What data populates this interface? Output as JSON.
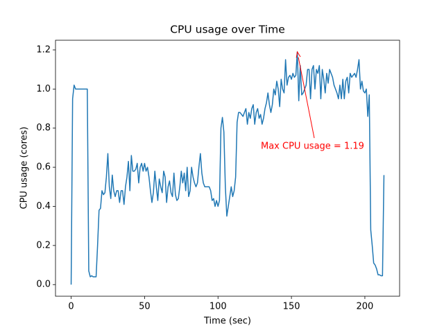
{
  "chart_data": {
    "type": "line",
    "title": "CPU usage over Time",
    "xlabel": "Time (sec)",
    "ylabel": "CPU usage (cores)",
    "annotation": {
      "text": "Max CPU usage = 1.19",
      "color": "#ff0000"
    },
    "x": [
      0,
      1,
      2,
      3,
      4,
      5,
      6,
      7,
      8,
      9,
      10,
      11,
      12,
      13,
      14,
      15,
      16,
      17,
      18,
      19,
      20,
      21,
      22,
      23,
      24,
      25,
      26,
      27,
      28,
      29,
      30,
      31,
      32,
      33,
      34,
      35,
      36,
      37,
      38,
      39,
      40,
      41,
      42,
      43,
      44,
      45,
      46,
      47,
      48,
      49,
      50,
      51,
      52,
      53,
      54,
      55,
      56,
      57,
      58,
      59,
      60,
      61,
      62,
      63,
      64,
      65,
      66,
      67,
      68,
      69,
      70,
      71,
      72,
      73,
      74,
      75,
      76,
      77,
      78,
      79,
      80,
      81,
      82,
      83,
      84,
      85,
      86,
      87,
      88,
      89,
      90,
      91,
      92,
      93,
      94,
      95,
      96,
      97,
      98,
      99,
      100,
      101,
      102,
      103,
      104,
      105,
      106,
      107,
      108,
      109,
      110,
      111,
      112,
      113,
      114,
      115,
      116,
      117,
      118,
      119,
      120,
      121,
      122,
      123,
      124,
      125,
      126,
      127,
      128,
      129,
      130,
      131,
      132,
      133,
      134,
      135,
      136,
      137,
      138,
      139,
      140,
      141,
      142,
      143,
      144,
      145,
      146,
      147,
      148,
      149,
      150,
      151,
      152,
      153,
      154,
      155,
      156,
      157,
      158,
      159,
      160,
      161,
      162,
      163,
      164,
      165,
      166,
      167,
      168,
      169,
      170,
      171,
      172,
      173,
      174,
      175,
      176,
      177,
      178,
      179,
      180,
      181,
      182,
      183,
      184,
      185,
      186,
      187,
      188,
      189,
      190,
      191,
      192,
      193,
      194,
      195,
      196,
      197,
      198,
      199,
      200,
      201,
      202,
      203,
      204,
      205,
      206,
      207,
      208,
      209,
      210,
      211,
      212,
      213
    ],
    "series": [
      {
        "name": "CPU usage",
        "color": "#1f77b4",
        "values": [
          0.0,
          0.95,
          1.02,
          1.0,
          1.0,
          1.0,
          1.0,
          1.0,
          1.0,
          1.0,
          1.0,
          1.0,
          0.07,
          0.04,
          0.045,
          0.04,
          0.04,
          0.04,
          0.2,
          0.38,
          0.39,
          0.48,
          0.46,
          0.47,
          0.55,
          0.67,
          0.5,
          0.44,
          0.56,
          0.48,
          0.45,
          0.48,
          0.48,
          0.42,
          0.48,
          0.48,
          0.41,
          0.5,
          0.55,
          0.63,
          0.48,
          0.66,
          0.58,
          0.58,
          0.59,
          0.62,
          0.52,
          0.6,
          0.62,
          0.58,
          0.62,
          0.58,
          0.6,
          0.55,
          0.48,
          0.42,
          0.47,
          0.58,
          0.5,
          0.43,
          0.54,
          0.5,
          0.47,
          0.58,
          0.55,
          0.42,
          0.5,
          0.53,
          0.47,
          0.45,
          0.57,
          0.46,
          0.43,
          0.44,
          0.5,
          0.58,
          0.52,
          0.57,
          0.48,
          0.6,
          0.45,
          0.48,
          0.6,
          0.55,
          0.52,
          0.5,
          0.52,
          0.6,
          0.67,
          0.57,
          0.52,
          0.5,
          0.5,
          0.5,
          0.5,
          0.48,
          0.43,
          0.44,
          0.4,
          0.43,
          0.4,
          0.43,
          0.8,
          0.855,
          0.78,
          0.5,
          0.35,
          0.4,
          0.45,
          0.5,
          0.45,
          0.48,
          0.55,
          0.83,
          0.88,
          0.88,
          0.87,
          0.86,
          0.88,
          0.9,
          0.82,
          0.88,
          0.85,
          0.9,
          0.92,
          0.82,
          0.88,
          0.9,
          0.85,
          0.87,
          0.82,
          0.85,
          0.9,
          0.93,
          0.98,
          0.92,
          0.88,
          0.92,
          1.0,
          0.97,
          1.04,
          1.0,
          0.91,
          1.05,
          1.0,
          0.98,
          1.15,
          1.02,
          1.06,
          1.07,
          1.05,
          1.08,
          1.06,
          1.07,
          1.19,
          0.94,
          1.12,
          0.97,
          0.98,
          1.0,
          1.02,
          1.1,
          1.1,
          0.95,
          1.1,
          1.12,
          1.0,
          1.1,
          1.08,
          1.12,
          0.95,
          1.1,
          1.05,
          0.98,
          1.08,
          1.03,
          1.1,
          1.08,
          1.06,
          1.02,
          1.0,
          0.98,
          0.95,
          1.02,
          0.95,
          1.05,
          0.95,
          1.04,
          1.06,
          0.98,
          1.08,
          1.06,
          1.07,
          1.08,
          1.06,
          1.1,
          1.15,
          1.0,
          1.04,
          0.99,
          0.98,
          1.0,
          0.86,
          0.97,
          0.28,
          0.2,
          0.11,
          0.1,
          0.08,
          0.05,
          0.05,
          0.045,
          0.045,
          0.56
        ]
      }
    ],
    "xlim": [
      -10.65,
      223.65
    ],
    "ylim": [
      -0.0595,
      1.2495
    ],
    "xticks": [
      0,
      50,
      100,
      150,
      200
    ],
    "yticks": [
      {
        "value": 0,
        "label": "0.0"
      },
      0.2,
      0.4,
      0.6,
      0.8,
      {
        "value": 1,
        "label": "1.0"
      },
      1.2
    ]
  }
}
